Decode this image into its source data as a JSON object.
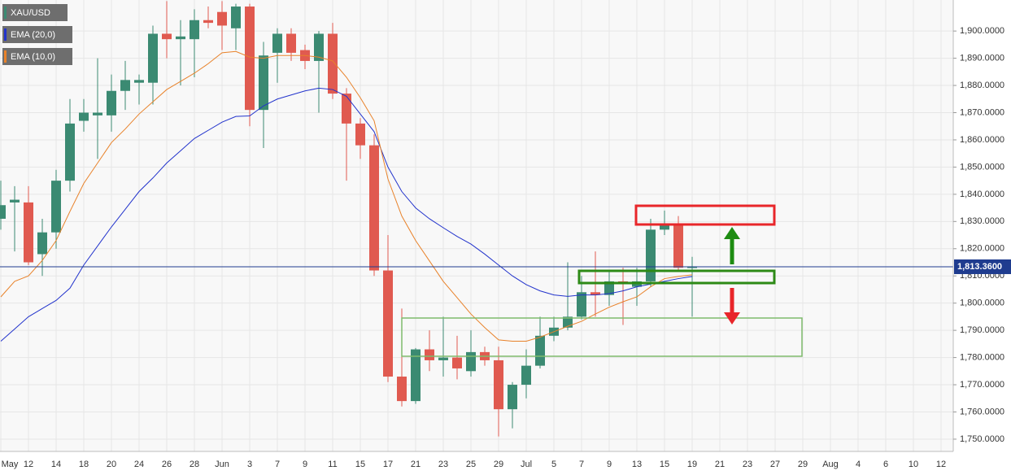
{
  "chart_data": {
    "type": "candlestick",
    "name": "XAU/USD",
    "up_color": "#3b8a72",
    "down_color": "#e05a50",
    "categories": [
      "May",
      null,
      "12",
      null,
      "14",
      null,
      "18",
      null,
      "20",
      null,
      "24",
      null,
      "26",
      null,
      "28",
      null,
      "Jun",
      null,
      "3",
      null,
      "7",
      null,
      "9",
      null,
      "11",
      null,
      "15",
      null,
      "17",
      null,
      "21",
      null,
      "23",
      null,
      "25",
      null,
      "29",
      null,
      "Jul",
      null,
      "5",
      null,
      "7",
      null,
      "9",
      null,
      "13",
      null,
      "15",
      null,
      "19",
      null,
      "21",
      null,
      "23",
      null,
      "27",
      null,
      "29",
      null,
      "Aug",
      null,
      "4",
      null,
      "6",
      null,
      "10",
      null,
      "12"
    ],
    "open": [
      1831,
      1837,
      1837,
      1818,
      1826,
      1845,
      1867,
      1869,
      1869,
      1878,
      1881,
      1881,
      1899,
      1897,
      1897,
      1904,
      1907,
      1901,
      1909,
      1871,
      1892,
      1899,
      1893,
      1889,
      1899,
      1877,
      1866,
      1858,
      1812,
      1773,
      1764,
      1783,
      1779,
      1780,
      1775,
      1782,
      1779,
      1761,
      1770,
      1777,
      1788,
      1791,
      1795,
      1804,
      1803,
      1808,
      1806,
      1808,
      1827,
      1829,
      1813,
      null,
      null,
      null,
      null,
      null,
      null,
      null,
      null,
      null,
      null,
      null,
      null,
      null,
      null,
      null,
      null,
      null,
      null
    ],
    "high": [
      1845,
      1843,
      1843,
      1831,
      1849,
      1875,
      1875,
      1890,
      1884,
      1889,
      1884,
      1902,
      1911,
      1904,
      1908,
      1909,
      1911,
      1910,
      1910,
      1896,
      1901,
      1901,
      1895,
      1900,
      1903,
      1879,
      1868,
      1862,
      1825,
      1798,
      1783.5,
      1790,
      1795,
      1788,
      1790,
      1784,
      1784,
      1771,
      1783,
      1795,
      1795,
      1815,
      1810,
      1819,
      1812,
      1813,
      1813,
      1831,
      1834,
      1832,
      1817,
      null,
      null,
      null,
      null,
      null,
      null,
      null,
      null,
      null,
      null,
      null,
      null,
      null,
      null,
      null,
      null,
      null,
      null
    ],
    "low": [
      1827,
      1819,
      1814,
      1810,
      1820,
      1841,
      1863,
      1853,
      1863,
      1871,
      1873,
      1873,
      1890,
      1880,
      1883,
      1901,
      1893,
      1893,
      1865,
      1857,
      1881,
      1889,
      1886,
      1870,
      1875,
      1845,
      1853,
      1810,
      1771,
      1762,
      1763,
      1775,
      1773,
      1772,
      1773,
      1777,
      1751,
      1754,
      1765,
      1776,
      1786,
      1790,
      1794,
      1795,
      1799,
      1792,
      1799,
      1806,
      1825,
      1812,
      1795,
      null,
      null,
      null,
      null,
      null,
      null,
      null,
      null,
      null,
      null,
      null,
      null,
      null,
      null,
      null,
      null,
      null,
      null
    ],
    "close": [
      1836,
      1838,
      1815,
      1826,
      1845,
      1866,
      1870,
      1870,
      1878,
      1882,
      1882,
      1899,
      1897,
      1898,
      1904,
      1903,
      1902,
      1909,
      1871,
      1891,
      1899,
      1892,
      1889,
      1899,
      1877,
      1866,
      1858,
      1812,
      1773,
      1764,
      1783,
      1779,
      1780,
      1776,
      1782,
      1779,
      1761,
      1770,
      1777,
      1788,
      1791,
      1795,
      1804,
      1803,
      1808,
      1807,
      1808,
      1827,
      1829,
      1813,
      1813.36,
      null,
      null,
      null,
      null,
      null,
      null,
      null,
      null,
      null,
      null,
      null,
      null,
      null,
      null,
      null,
      null,
      null,
      null
    ],
    "series": [
      {
        "name": "EMA (20,0)",
        "color": "#2233cc",
        "values": [
          1786,
          1790.5,
          1795,
          1798,
          1801,
          1805.5,
          1814,
          1821,
          1828,
          1834.5,
          1841,
          1846,
          1851.5,
          1856,
          1860.5,
          1863.5,
          1866.5,
          1868.6,
          1868.8,
          1872.5,
          1875,
          1876.5,
          1878,
          1879,
          1878.5,
          1876,
          1869.5,
          1863,
          1850,
          1841,
          1835,
          1831,
          1827.7,
          1824.5,
          1821.7,
          1818,
          1814,
          1810,
          1806.8,
          1804.5,
          1803,
          1802.5,
          1803,
          1803,
          1803.5,
          1804.5,
          1806,
          1807,
          1808,
          1809,
          1809.8,
          null,
          null,
          null,
          null,
          null,
          null,
          null,
          null,
          null,
          null,
          null,
          null,
          null,
          null,
          null,
          null,
          null,
          null
        ]
      },
      {
        "name": "EMA (10,0)",
        "color": "#e8822a",
        "values": [
          1802.3,
          1808,
          1810,
          1815.7,
          1823,
          1833.7,
          1844,
          1851.5,
          1859,
          1864,
          1869.5,
          1874,
          1878.5,
          1881.5,
          1884.5,
          1888,
          1892,
          1892.5,
          1890.4,
          1890,
          1891,
          1891,
          1891,
          1890.4,
          1889,
          1883,
          1875.5,
          1867,
          1845.6,
          1832,
          1823,
          1815.5,
          1808,
          1802,
          1796,
          1791,
          1786.5,
          1786,
          1786,
          1787.5,
          1789.5,
          1791.5,
          1793.3,
          1796,
          1798.5,
          1800.5,
          1802.3,
          1806,
          1809,
          1809.8,
          1810.4,
          null,
          null,
          null,
          null,
          null,
          null,
          null,
          null,
          null,
          null,
          null,
          null,
          null,
          null,
          null,
          null,
          null,
          null
        ]
      }
    ],
    "last_price": {
      "value": 1813.36,
      "label": "1,813.3600"
    },
    "ylim": [
      1745.5,
      1911.4
    ],
    "yticks": [
      {
        "value": 1750,
        "label": "1,750.0000"
      },
      {
        "value": 1760,
        "label": "1,760.0000"
      },
      {
        "value": 1770,
        "label": "1,770.0000"
      },
      {
        "value": 1780,
        "label": "1,780.0000"
      },
      {
        "value": 1790,
        "label": "1,790.0000"
      },
      {
        "value": 1800,
        "label": "1,800.0000"
      },
      {
        "value": 1810,
        "label": "1,810.0000"
      },
      {
        "value": 1820,
        "label": "1,820.0000"
      },
      {
        "value": 1830,
        "label": "1,830.0000"
      },
      {
        "value": 1840,
        "label": "1,840.0000"
      },
      {
        "value": 1850,
        "label": "1,850.0000"
      },
      {
        "value": 1860,
        "label": "1,860.0000"
      },
      {
        "value": 1870,
        "label": "1,870.0000"
      },
      {
        "value": 1880,
        "label": "1,880.0000"
      },
      {
        "value": 1890,
        "label": "1,890.0000"
      },
      {
        "value": 1900,
        "label": "1,900.0000"
      }
    ],
    "grid": true
  }
}
